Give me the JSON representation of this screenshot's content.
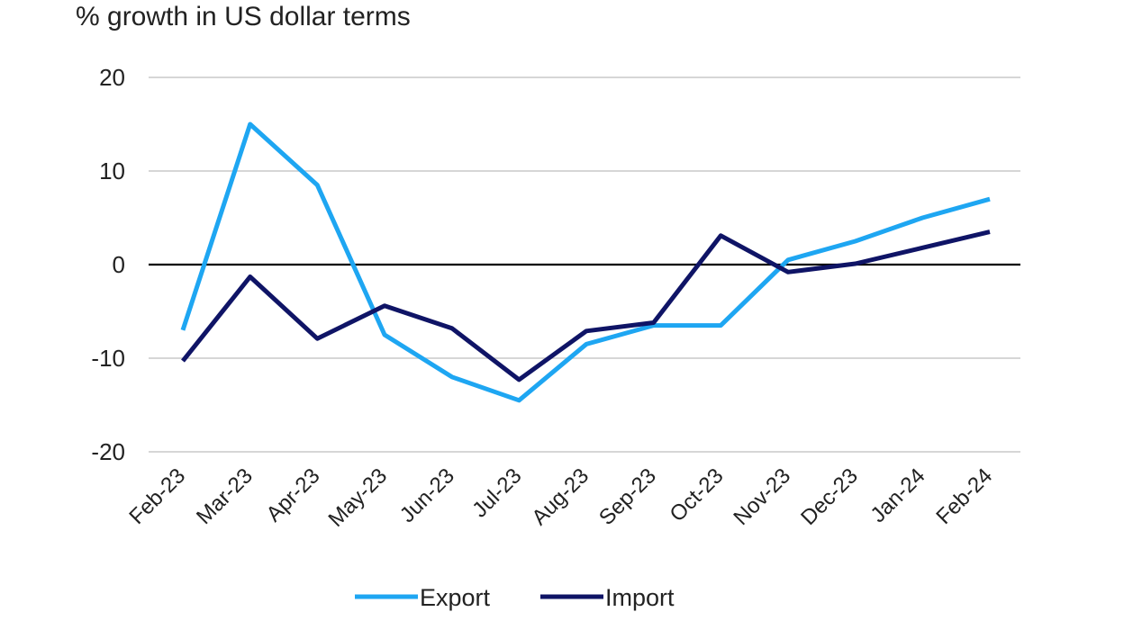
{
  "colors": {
    "export": "#1ea6f2",
    "import": "#0f1466",
    "grid": "#c8c8c8",
    "zero_line": "#000000",
    "text": "#222222"
  },
  "chart_data": {
    "type": "line",
    "title": "% growth in US dollar terms",
    "xlabel": "",
    "ylabel": "",
    "ylim": [
      -20,
      20
    ],
    "yticks": [
      20,
      10,
      0,
      -10,
      -20
    ],
    "grid": true,
    "legend_position": "bottom",
    "categories": [
      "Feb-23",
      "Mar-23",
      "Apr-23",
      "May-23",
      "Jun-23",
      "Jul-23",
      "Aug-23",
      "Sep-23",
      "Oct-23",
      "Nov-23",
      "Dec-23",
      "Jan-24",
      "Feb-24"
    ],
    "series": [
      {
        "name": "Export",
        "color_key": "export",
        "values": [
          -7.0,
          15.0,
          8.5,
          -7.5,
          -12.0,
          -14.5,
          -8.5,
          -6.5,
          -6.5,
          0.5,
          2.5,
          5.0,
          7.0
        ]
      },
      {
        "name": "Import",
        "color_key": "import",
        "values": [
          -10.3,
          -1.3,
          -7.9,
          -4.4,
          -6.8,
          -12.3,
          -7.1,
          -6.2,
          3.1,
          -0.8,
          0.1,
          1.8,
          3.5
        ]
      }
    ]
  }
}
